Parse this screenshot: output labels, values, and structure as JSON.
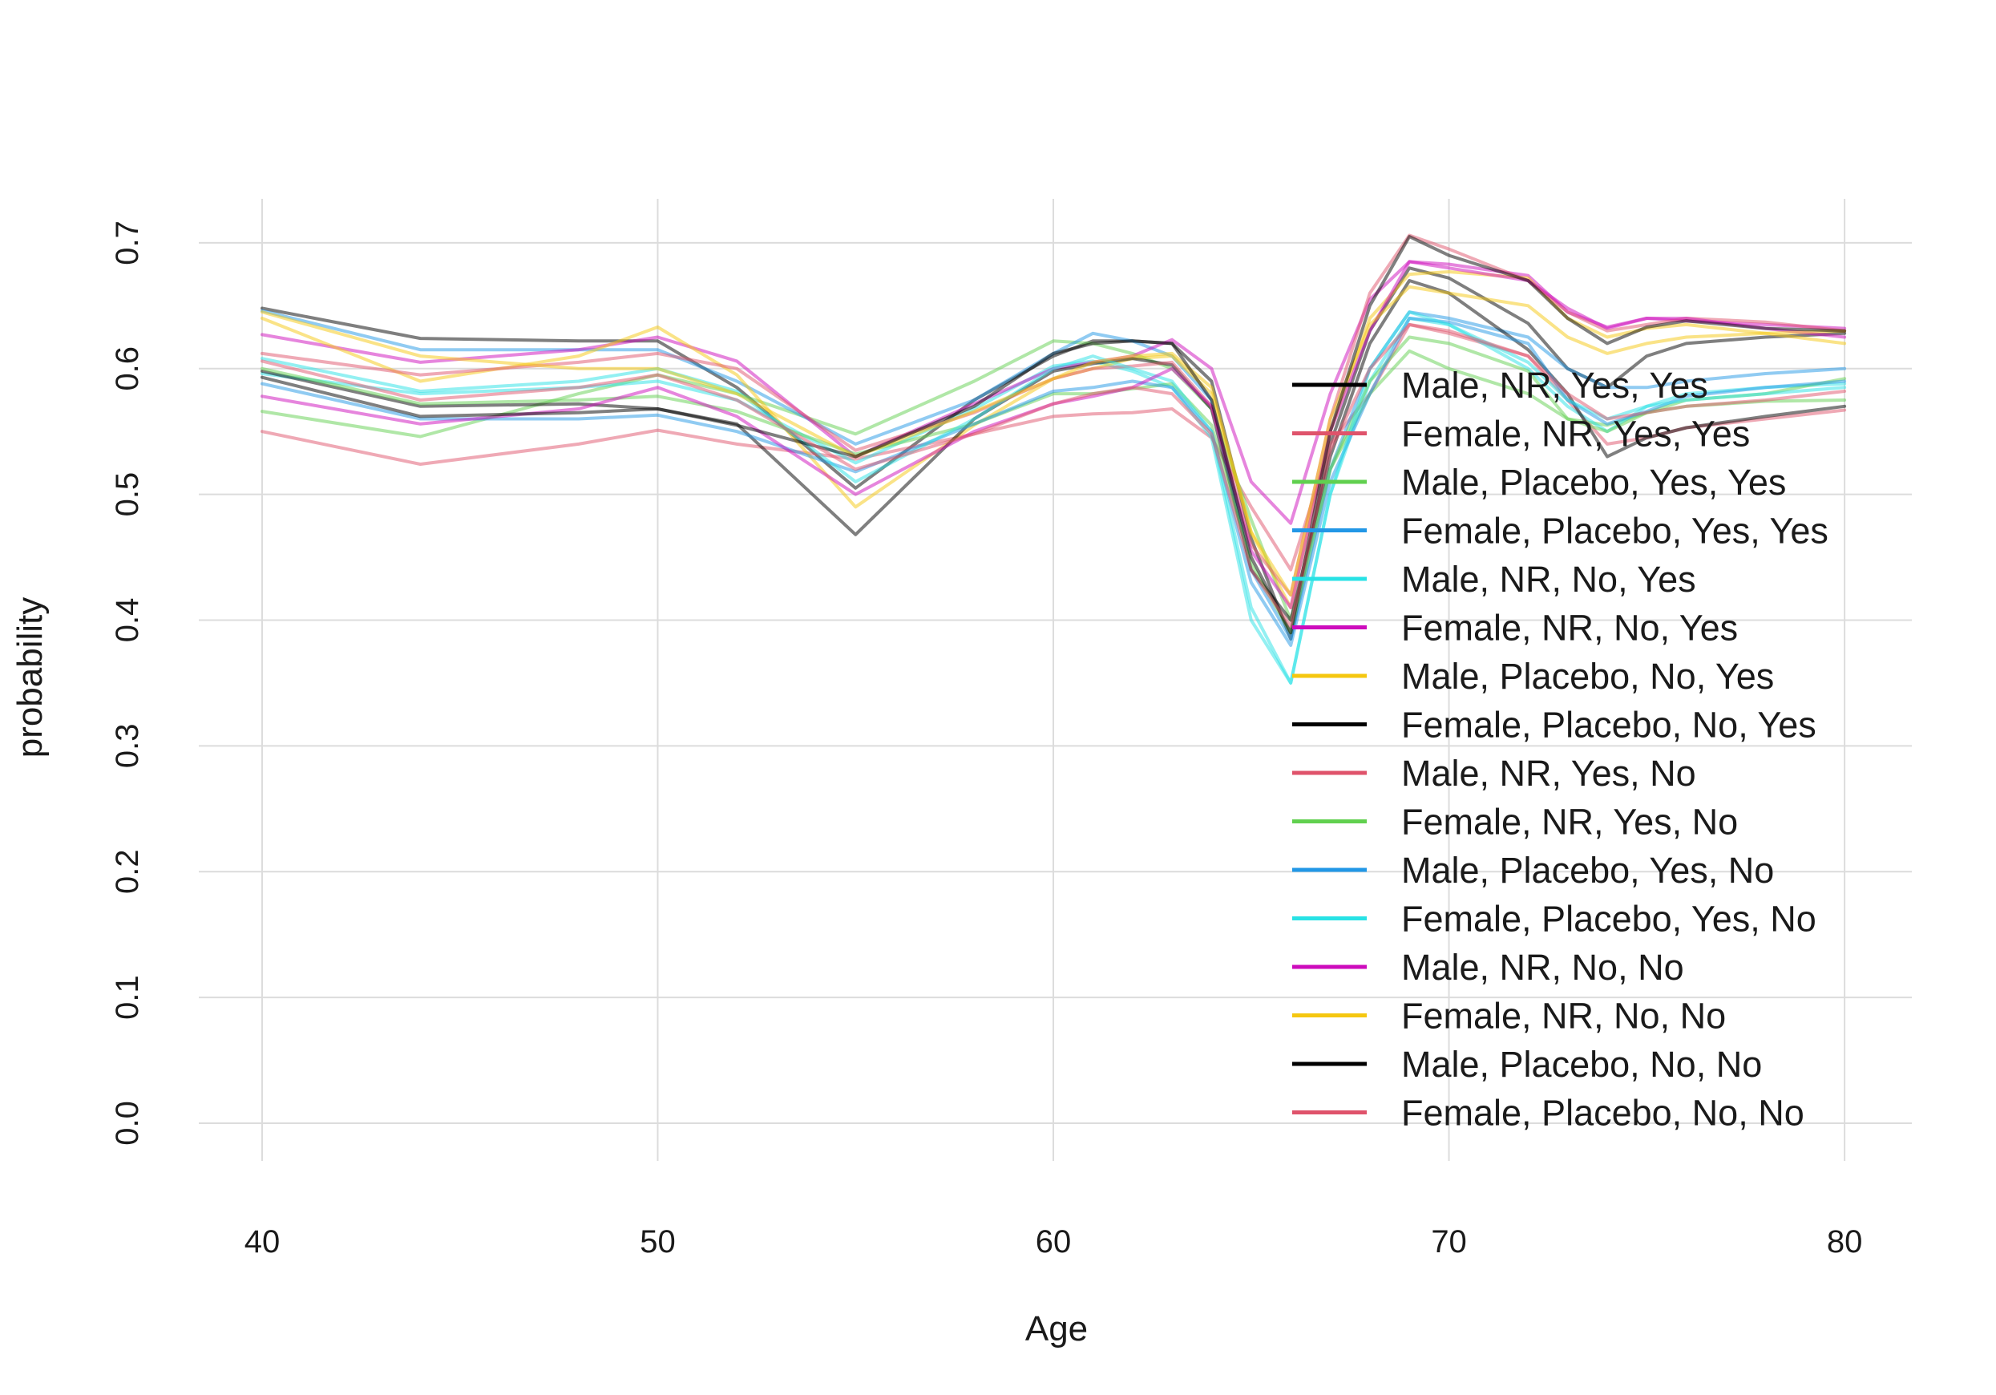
{
  "chart_data": {
    "type": "line",
    "xlabel": "Age",
    "ylabel": "probability",
    "xlim": [
      38.4,
      81.7
    ],
    "ylim": [
      -0.03,
      0.735
    ],
    "x_ticks": [
      40,
      50,
      60,
      70,
      80
    ],
    "y_ticks": [
      0.0,
      0.1,
      0.2,
      0.3,
      0.4,
      0.5,
      0.6,
      0.7
    ],
    "x_tick_labels": [
      "40",
      "50",
      "60",
      "70",
      "80"
    ],
    "y_tick_labels": [
      "0.0",
      "0.1",
      "0.2",
      "0.3",
      "0.4",
      "0.5",
      "0.6",
      "0.7"
    ],
    "grid": true,
    "legend_position": "right",
    "x": [
      40,
      44,
      48,
      50,
      52,
      55,
      58,
      60,
      61,
      62,
      63,
      64,
      65,
      66,
      67,
      68,
      69,
      70,
      72,
      73,
      74,
      75,
      76,
      78,
      80
    ],
    "series": [
      {
        "name": "Male, NR, Yes, Yes",
        "color": "#000000",
        "values": [
          0.648,
          0.624,
          0.622,
          0.622,
          0.585,
          0.505,
          0.575,
          0.61,
          0.622,
          0.622,
          0.62,
          0.59,
          0.465,
          0.385,
          0.54,
          0.63,
          0.68,
          0.672,
          0.636,
          0.6,
          0.585,
          0.61,
          0.62,
          0.625,
          0.628
        ]
      },
      {
        "name": "Female, NR, Yes, Yes",
        "color": "#DF536B",
        "values": [
          0.55,
          0.524,
          0.54,
          0.551,
          0.54,
          0.528,
          0.548,
          0.562,
          0.564,
          0.565,
          0.568,
          0.545,
          0.49,
          0.44,
          0.54,
          0.58,
          0.635,
          0.628,
          0.61,
          0.575,
          0.54,
          0.545,
          0.553,
          0.56,
          0.567
        ]
      },
      {
        "name": "Male, Placebo, Yes, Yes",
        "color": "#61D04F",
        "values": [
          0.566,
          0.546,
          0.58,
          0.595,
          0.58,
          0.548,
          0.59,
          0.622,
          0.62,
          0.612,
          0.6,
          0.568,
          0.48,
          0.4,
          0.52,
          0.58,
          0.614,
          0.6,
          0.58,
          0.56,
          0.555,
          0.565,
          0.57,
          0.574,
          0.575
        ]
      },
      {
        "name": "Female, Placebo, Yes, Yes",
        "color": "#2297E6",
        "values": [
          0.646,
          0.615,
          0.615,
          0.615,
          0.59,
          0.54,
          0.575,
          0.612,
          0.628,
          0.622,
          0.61,
          0.575,
          0.44,
          0.385,
          0.52,
          0.6,
          0.645,
          0.64,
          0.625,
          0.6,
          0.585,
          0.585,
          0.59,
          0.596,
          0.6
        ]
      },
      {
        "name": "Male, NR, No, Yes",
        "color": "#28E2E5",
        "values": [
          0.596,
          0.58,
          0.585,
          0.59,
          0.575,
          0.525,
          0.568,
          0.602,
          0.606,
          0.598,
          0.585,
          0.545,
          0.4,
          0.35,
          0.5,
          0.59,
          0.64,
          0.635,
          0.6,
          0.57,
          0.55,
          0.57,
          0.58,
          0.585,
          0.588
        ]
      },
      {
        "name": "Female, NR, No, Yes",
        "color": "#CD0BBC",
        "values": [
          0.627,
          0.605,
          0.615,
          0.625,
          0.606,
          0.53,
          0.572,
          0.6,
          0.605,
          0.61,
          0.623,
          0.6,
          0.51,
          0.477,
          0.58,
          0.655,
          0.685,
          0.683,
          0.674,
          0.645,
          0.633,
          0.64,
          0.638,
          0.635,
          0.632
        ]
      },
      {
        "name": "Male, Placebo, No, Yes",
        "color": "#F5C710",
        "values": [
          0.64,
          0.59,
          0.61,
          0.633,
          0.595,
          0.49,
          0.555,
          0.592,
          0.6,
          0.608,
          0.61,
          0.58,
          0.47,
          0.41,
          0.55,
          0.64,
          0.675,
          0.677,
          0.672,
          0.64,
          0.625,
          0.632,
          0.635,
          0.628,
          0.62
        ]
      },
      {
        "name": "Female, Placebo, No, Yes",
        "color": "#000000",
        "values": [
          0.598,
          0.57,
          0.572,
          0.568,
          0.556,
          0.468,
          0.56,
          0.598,
          0.604,
          0.608,
          0.603,
          0.568,
          0.44,
          0.4,
          0.53,
          0.62,
          0.67,
          0.66,
          0.615,
          0.58,
          0.53,
          0.545,
          0.553,
          0.562,
          0.57
        ]
      },
      {
        "name": "Male, NR, Yes, No",
        "color": "#DF536B",
        "values": [
          0.612,
          0.595,
          0.605,
          0.612,
          0.6,
          0.535,
          0.565,
          0.592,
          0.6,
          0.602,
          0.605,
          0.57,
          0.46,
          0.42,
          0.56,
          0.66,
          0.706,
          0.695,
          0.67,
          0.645,
          0.63,
          0.635,
          0.64,
          0.637,
          0.63
        ]
      },
      {
        "name": "Female, NR, Yes, No",
        "color": "#61D04F",
        "values": [
          0.6,
          0.572,
          0.575,
          0.578,
          0.566,
          0.532,
          0.556,
          0.58,
          0.58,
          0.584,
          0.588,
          0.555,
          0.445,
          0.39,
          0.52,
          0.59,
          0.625,
          0.62,
          0.598,
          0.56,
          0.55,
          0.565,
          0.575,
          0.58,
          0.592
        ]
      },
      {
        "name": "Male, Placebo, Yes, No",
        "color": "#2297E6",
        "values": [
          0.588,
          0.56,
          0.56,
          0.563,
          0.55,
          0.518,
          0.556,
          0.582,
          0.585,
          0.59,
          0.585,
          0.55,
          0.43,
          0.38,
          0.51,
          0.58,
          0.64,
          0.637,
          0.62,
          0.575,
          0.556,
          0.566,
          0.578,
          0.585,
          0.59
        ]
      },
      {
        "name": "Female, Placebo, Yes, No",
        "color": "#28E2E5",
        "values": [
          0.608,
          0.582,
          0.59,
          0.6,
          0.582,
          0.51,
          0.56,
          0.6,
          0.61,
          0.6,
          0.59,
          0.55,
          0.41,
          0.35,
          0.5,
          0.6,
          0.645,
          0.635,
          0.605,
          0.575,
          0.56,
          0.57,
          0.575,
          0.58,
          0.585
        ]
      },
      {
        "name": "Male, NR, No, No",
        "color": "#CD0BBC",
        "values": [
          0.578,
          0.556,
          0.568,
          0.585,
          0.562,
          0.5,
          0.55,
          0.572,
          0.578,
          0.585,
          0.6,
          0.57,
          0.455,
          0.41,
          0.55,
          0.63,
          0.685,
          0.68,
          0.67,
          0.648,
          0.632,
          0.64,
          0.64,
          0.632,
          0.625
        ]
      },
      {
        "name": "Female, NR, No, No",
        "color": "#F5C710",
        "values": [
          0.645,
          0.61,
          0.6,
          0.6,
          0.58,
          0.53,
          0.566,
          0.592,
          0.605,
          0.61,
          0.612,
          0.585,
          0.47,
          0.42,
          0.56,
          0.635,
          0.665,
          0.66,
          0.65,
          0.625,
          0.612,
          0.62,
          0.625,
          0.628,
          0.63
        ]
      },
      {
        "name": "Male, Placebo, No, No",
        "color": "#000000",
        "values": [
          0.593,
          0.562,
          0.565,
          0.568,
          0.555,
          0.53,
          0.57,
          0.612,
          0.62,
          0.622,
          0.62,
          0.575,
          0.45,
          0.39,
          0.55,
          0.65,
          0.705,
          0.69,
          0.67,
          0.64,
          0.62,
          0.633,
          0.638,
          0.632,
          0.63
        ]
      },
      {
        "name": "Female, Placebo, No, No",
        "color": "#DF536B",
        "values": [
          0.606,
          0.575,
          0.585,
          0.595,
          0.575,
          0.52,
          0.548,
          0.572,
          0.58,
          0.585,
          0.58,
          0.548,
          0.44,
          0.395,
          0.535,
          0.6,
          0.635,
          0.63,
          0.61,
          0.58,
          0.56,
          0.565,
          0.57,
          0.575,
          0.582
        ]
      }
    ]
  }
}
